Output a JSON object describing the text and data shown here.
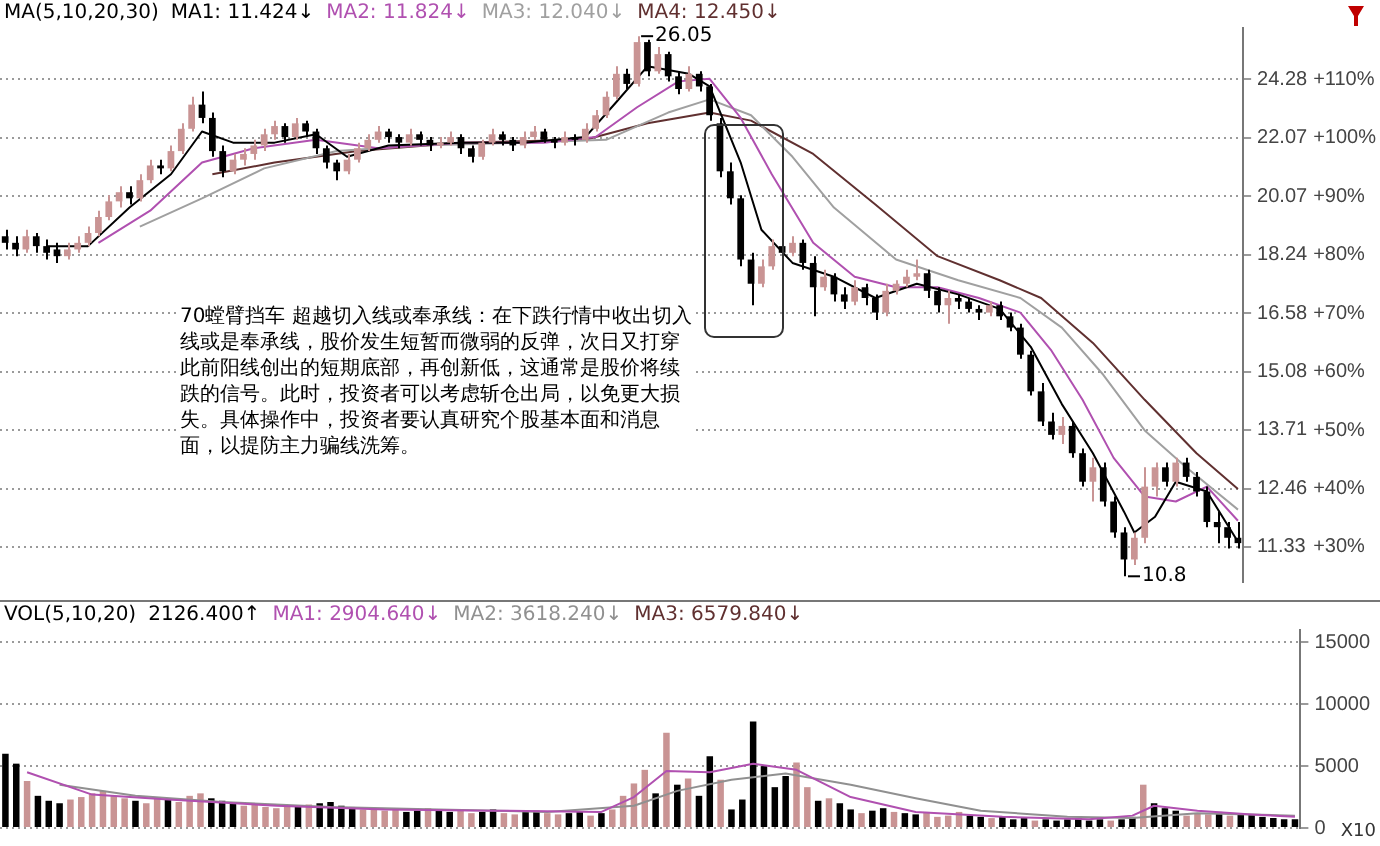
{
  "chart_data": [
    {
      "type": "candlestick",
      "title": "MA(5,10,20,30)",
      "tick_labels": "y",
      "grid": "y",
      "log": true,
      "marker": "none",
      "categories": [
        null,
        null,
        null,
        null,
        null,
        null,
        null,
        null,
        null,
        null,
        null,
        null,
        null,
        null,
        null,
        null,
        null,
        null,
        null,
        null,
        null,
        null,
        null,
        null,
        null,
        null,
        null,
        null,
        null,
        null,
        null,
        null,
        null,
        null,
        null,
        null,
        null,
        null,
        null,
        null,
        null,
        null,
        null,
        null,
        null,
        null,
        null,
        null,
        null,
        null,
        null,
        null,
        null,
        null,
        null,
        null,
        null,
        null,
        null,
        null,
        null,
        null,
        null,
        null,
        null,
        null,
        null,
        null,
        null,
        null,
        null,
        null,
        null,
        null,
        null,
        null,
        null,
        null,
        null,
        null,
        null,
        null,
        null,
        null,
        null,
        null,
        null,
        null,
        null,
        null,
        null,
        null,
        null,
        null,
        null,
        null,
        null,
        null,
        null,
        null,
        null,
        null,
        null,
        null,
        null,
        null,
        null,
        null,
        null,
        null,
        null,
        null,
        null,
        null,
        null,
        null,
        null,
        null,
        null,
        null
      ],
      "colors": [
        "#000000",
        "#000000",
        "#c99494",
        "#000000",
        "#000000",
        "#000000",
        "#c99494",
        "#c99494",
        "#c99494",
        "#c99494",
        "#c99494",
        "#c99494",
        "#000000",
        "#c99494",
        "#c99494",
        "#000000",
        "#c99494",
        "#c99494",
        "#c99494",
        "#000000",
        "#000000",
        "#000000",
        "#c99494",
        "#c99494",
        "#c99494",
        "#c99494",
        "#c99494",
        "#000000",
        "#c99494",
        "#000000",
        "#000000",
        "#000000",
        "#000000",
        "#c99494",
        "#c99494",
        "#c99494",
        "#c99494",
        "#000000",
        "#000000",
        "#c99494",
        "#000000",
        "#000000",
        "#c99494",
        "#c99494",
        "#000000",
        "#000000",
        "#c99494",
        "#c99494",
        "#000000",
        "#000000",
        "#c99494",
        "#c99494",
        "#000000",
        "#000000",
        "#c99494",
        "#000000",
        "#c99494",
        "#c99494",
        "#c99494",
        "#c99494",
        "#000000",
        "#c99494",
        "#000000",
        "#c99494",
        "#000000",
        "#000000",
        "#c99494",
        "#000000",
        "#000000",
        "#000000",
        "#000000",
        "#000000",
        "#000000",
        "#c99494",
        "#c99494",
        "#000000",
        "#c99494",
        "#000000",
        "#000000",
        "#c99494",
        "#000000",
        "#000000",
        "#c99494",
        "#000000",
        "#000000",
        "#c99494",
        "#c99494",
        "#c99494",
        "#c99494",
        "#000000",
        "#000000",
        "#c99494",
        "#000000",
        "#000000",
        "#000000",
        "#c99494",
        "#000000",
        "#000000",
        "#000000",
        "#000000",
        "#000000",
        "#000000",
        "#c99494",
        "#000000",
        "#000000",
        "#c99494",
        "#000000",
        "#000000",
        "#000000",
        "#c99494",
        "#c99494",
        "#c99494",
        "#000000",
        "#c99494",
        "#000000",
        "#000000",
        "#000000",
        "#000000",
        "#000000",
        "#000000"
      ],
      "ohlc": [
        [
          18.8,
          19.0,
          18.4,
          18.6
        ],
        [
          18.6,
          18.8,
          18.2,
          18.4
        ],
        [
          18.4,
          19.0,
          18.3,
          18.8
        ],
        [
          18.8,
          18.9,
          18.3,
          18.5
        ],
        [
          18.5,
          18.7,
          18.1,
          18.3
        ],
        [
          18.4,
          18.6,
          18.0,
          18.2
        ],
        [
          18.2,
          18.6,
          18.1,
          18.4
        ],
        [
          18.4,
          18.8,
          18.3,
          18.6
        ],
        [
          18.6,
          19.1,
          18.5,
          18.9
        ],
        [
          18.9,
          19.6,
          18.8,
          19.4
        ],
        [
          19.4,
          20.1,
          19.3,
          19.9
        ],
        [
          19.9,
          20.4,
          19.7,
          20.2
        ],
        [
          20.2,
          20.4,
          19.8,
          20.0
        ],
        [
          20.0,
          20.8,
          19.9,
          20.6
        ],
        [
          20.6,
          21.3,
          20.5,
          21.1
        ],
        [
          21.1,
          21.3,
          20.8,
          21.0
        ],
        [
          21.0,
          21.8,
          20.9,
          21.6
        ],
        [
          21.6,
          22.6,
          21.5,
          22.4
        ],
        [
          22.4,
          23.6,
          22.3,
          23.3
        ],
        [
          23.3,
          23.8,
          22.6,
          22.8
        ],
        [
          22.8,
          23.0,
          21.4,
          21.6
        ],
        [
          21.6,
          21.8,
          20.7,
          20.9
        ],
        [
          20.9,
          21.5,
          20.8,
          21.3
        ],
        [
          21.3,
          21.7,
          21.1,
          21.5
        ],
        [
          21.5,
          22.0,
          21.3,
          21.8
        ],
        [
          21.8,
          22.4,
          21.6,
          22.2
        ],
        [
          22.2,
          22.7,
          22.0,
          22.5
        ],
        [
          22.5,
          22.6,
          21.9,
          22.1
        ],
        [
          22.1,
          22.8,
          22.0,
          22.6
        ],
        [
          22.6,
          22.7,
          22.1,
          22.3
        ],
        [
          22.3,
          22.4,
          21.5,
          21.7
        ],
        [
          21.7,
          21.8,
          21.0,
          21.2
        ],
        [
          21.2,
          21.3,
          20.6,
          20.9
        ],
        [
          20.9,
          21.5,
          20.8,
          21.3
        ],
        [
          21.3,
          21.9,
          21.2,
          21.7
        ],
        [
          21.7,
          22.2,
          21.6,
          22.0
        ],
        [
          22.0,
          22.5,
          21.9,
          22.3
        ],
        [
          22.3,
          22.4,
          21.9,
          22.1
        ],
        [
          22.1,
          22.2,
          21.7,
          21.9
        ],
        [
          21.9,
          22.4,
          21.8,
          22.2
        ],
        [
          22.2,
          22.3,
          21.8,
          22.0
        ],
        [
          22.0,
          22.1,
          21.6,
          21.8
        ],
        [
          21.8,
          22.1,
          21.7,
          21.9
        ],
        [
          21.9,
          22.3,
          21.8,
          22.1
        ],
        [
          22.1,
          22.2,
          21.5,
          21.7
        ],
        [
          21.7,
          21.8,
          21.2,
          21.4
        ],
        [
          21.4,
          22.0,
          21.3,
          21.9
        ],
        [
          21.9,
          22.4,
          21.8,
          22.2
        ],
        [
          22.2,
          22.3,
          21.8,
          22.0
        ],
        [
          22.0,
          22.1,
          21.6,
          21.8
        ],
        [
          21.8,
          22.3,
          21.7,
          22.1
        ],
        [
          22.1,
          22.5,
          22.0,
          22.3
        ],
        [
          22.3,
          22.4,
          21.9,
          22.0
        ],
        [
          22.0,
          22.1,
          21.7,
          21.9
        ],
        [
          21.9,
          22.3,
          21.8,
          22.1
        ],
        [
          22.1,
          22.2,
          21.8,
          22.0
        ],
        [
          22.0,
          22.6,
          21.9,
          22.4
        ],
        [
          22.4,
          23.1,
          22.3,
          22.9
        ],
        [
          22.9,
          23.8,
          22.8,
          23.6
        ],
        [
          23.6,
          24.8,
          23.5,
          24.5
        ],
        [
          24.5,
          24.7,
          23.9,
          24.1
        ],
        [
          24.1,
          26.05,
          24.0,
          25.8
        ],
        [
          25.8,
          25.9,
          24.4,
          24.6
        ],
        [
          24.6,
          25.6,
          24.5,
          25.3
        ],
        [
          25.3,
          25.4,
          24.2,
          24.4
        ],
        [
          24.4,
          24.6,
          23.7,
          23.9
        ],
        [
          23.9,
          24.8,
          23.8,
          24.5
        ],
        [
          24.5,
          24.6,
          23.8,
          24.0
        ],
        [
          24.0,
          24.1,
          22.7,
          22.9
        ],
        [
          22.6,
          22.8,
          20.7,
          20.9
        ],
        [
          20.9,
          21.2,
          19.8,
          20.0
        ],
        [
          20.0,
          20.1,
          17.9,
          18.1
        ],
        [
          18.1,
          18.3,
          16.8,
          17.4
        ],
        [
          17.4,
          18.1,
          17.3,
          17.9
        ],
        [
          17.9,
          18.7,
          17.8,
          18.5
        ],
        [
          18.5,
          18.6,
          18.1,
          18.3
        ],
        [
          18.3,
          18.8,
          18.2,
          18.6
        ],
        [
          18.6,
          18.7,
          17.8,
          18.0
        ],
        [
          18.0,
          18.2,
          16.5,
          17.3
        ],
        [
          17.3,
          17.8,
          17.2,
          17.6
        ],
        [
          17.6,
          17.7,
          16.9,
          17.1
        ],
        [
          17.1,
          17.3,
          16.7,
          16.9
        ],
        [
          16.9,
          17.5,
          16.8,
          17.3
        ],
        [
          17.3,
          17.4,
          16.8,
          17.0
        ],
        [
          17.0,
          17.1,
          16.4,
          16.6
        ],
        [
          16.6,
          17.4,
          16.5,
          17.2
        ],
        [
          17.2,
          17.5,
          17.1,
          17.4
        ],
        [
          17.4,
          17.8,
          17.3,
          17.6
        ],
        [
          17.6,
          18.1,
          17.5,
          17.7
        ],
        [
          17.7,
          17.8,
          17.0,
          17.2
        ],
        [
          17.2,
          17.3,
          16.6,
          16.8
        ],
        [
          16.8,
          17.2,
          16.3,
          17.0
        ],
        [
          17.0,
          17.1,
          16.7,
          16.9
        ],
        [
          16.9,
          17.0,
          16.6,
          16.7
        ],
        [
          16.7,
          16.8,
          16.4,
          16.6
        ],
        [
          16.6,
          16.9,
          16.5,
          16.8
        ],
        [
          16.8,
          16.9,
          16.4,
          16.5
        ],
        [
          16.5,
          16.6,
          16.1,
          16.2
        ],
        [
          16.2,
          16.3,
          15.4,
          15.5
        ],
        [
          15.5,
          15.6,
          14.5,
          14.6
        ],
        [
          14.6,
          14.8,
          13.8,
          13.9
        ],
        [
          13.9,
          14.1,
          13.5,
          13.6
        ],
        [
          13.6,
          14.0,
          13.4,
          13.8
        ],
        [
          13.8,
          13.9,
          13.1,
          13.2
        ],
        [
          13.2,
          13.3,
          12.5,
          12.6
        ],
        [
          12.6,
          13.1,
          12.2,
          12.9
        ],
        [
          12.9,
          13.0,
          12.1,
          12.2
        ],
        [
          12.2,
          12.3,
          11.5,
          11.6
        ],
        [
          11.6,
          11.7,
          10.8,
          11.1
        ],
        [
          11.1,
          11.6,
          11.0,
          11.5
        ],
        [
          11.5,
          12.9,
          11.4,
          12.5
        ],
        [
          12.5,
          13.0,
          12.3,
          12.9
        ],
        [
          12.9,
          13.0,
          12.5,
          12.6
        ],
        [
          12.6,
          13.1,
          12.5,
          13.0
        ],
        [
          13.0,
          13.1,
          12.6,
          12.7
        ],
        [
          12.7,
          12.8,
          12.3,
          12.4
        ],
        [
          12.4,
          12.5,
          11.7,
          11.8
        ],
        [
          11.8,
          12.0,
          11.4,
          11.7
        ],
        [
          11.7,
          11.8,
          11.3,
          11.5
        ],
        [
          11.5,
          11.8,
          11.3,
          11.4
        ]
      ],
      "series": [
        {
          "type": "line",
          "name": "MA1: 11.424↓",
          "color": "#000000",
          "values": [
            null,
            null,
            null,
            null,
            18.5,
            null,
            null,
            null,
            18.5,
            null,
            null,
            null,
            19.7,
            null,
            null,
            null,
            20.8,
            null,
            null,
            22.3,
            null,
            null,
            21.9,
            null,
            null,
            null,
            21.9,
            null,
            null,
            null,
            22.2,
            null,
            null,
            21.4,
            null,
            null,
            null,
            21.8,
            null,
            null,
            null,
            null,
            null,
            null,
            21.9,
            null,
            null,
            null,
            null,
            null,
            21.9,
            null,
            null,
            null,
            null,
            null,
            22.1,
            null,
            null,
            23.4,
            null,
            null,
            24.8,
            null,
            null,
            null,
            24.5,
            null,
            24.0,
            null,
            null,
            21.2,
            null,
            19.0,
            null,
            null,
            18.0,
            null,
            null,
            null,
            17.6,
            null,
            null,
            null,
            17.0,
            null,
            null,
            null,
            17.4,
            null,
            null,
            null,
            17.1,
            null,
            null,
            null,
            16.7,
            null,
            null,
            15.7,
            null,
            null,
            14.3,
            null,
            null,
            13.2,
            null,
            null,
            12.0,
            11.6,
            null,
            11.9,
            null,
            12.6,
            null,
            null,
            12.4,
            null,
            null,
            11.424
          ]
        },
        {
          "type": "line",
          "name": "MA2: 11.824↓",
          "color": "#b050b0",
          "values": [
            null,
            null,
            null,
            null,
            null,
            null,
            null,
            null,
            null,
            18.6,
            null,
            null,
            null,
            null,
            19.6,
            null,
            null,
            null,
            null,
            21.2,
            null,
            null,
            null,
            null,
            21.7,
            null,
            null,
            null,
            null,
            null,
            22.0,
            null,
            null,
            null,
            null,
            null,
            21.7,
            null,
            null,
            null,
            null,
            null,
            null,
            null,
            21.9,
            null,
            null,
            null,
            null,
            null,
            null,
            null,
            21.9,
            null,
            null,
            null,
            null,
            22.1,
            null,
            null,
            null,
            23.2,
            null,
            null,
            null,
            24.2,
            null,
            null,
            24.3,
            null,
            null,
            22.8,
            null,
            null,
            20.8,
            null,
            null,
            null,
            18.6,
            null,
            null,
            null,
            17.6,
            null,
            null,
            null,
            17.3,
            null,
            null,
            null,
            17.3,
            null,
            null,
            null,
            17.0,
            null,
            null,
            null,
            16.6,
            null,
            null,
            15.6,
            null,
            null,
            14.4,
            null,
            null,
            13.1,
            null,
            null,
            12.3,
            null,
            null,
            12.2,
            null,
            null,
            12.5,
            null,
            null,
            11.824
          ]
        },
        {
          "type": "line",
          "name": "MA3: 12.040↓",
          "color": "#a0a0a0",
          "values": [
            null,
            null,
            null,
            null,
            null,
            null,
            null,
            null,
            null,
            null,
            null,
            null,
            null,
            19.1,
            null,
            null,
            null,
            null,
            null,
            20.0,
            null,
            null,
            null,
            null,
            null,
            21.0,
            null,
            null,
            null,
            null,
            null,
            null,
            21.6,
            null,
            null,
            null,
            null,
            null,
            null,
            null,
            21.8,
            null,
            null,
            null,
            null,
            null,
            null,
            null,
            null,
            null,
            21.9,
            null,
            null,
            null,
            null,
            null,
            null,
            null,
            22.0,
            null,
            null,
            null,
            null,
            null,
            23.0,
            null,
            null,
            null,
            23.5,
            null,
            null,
            null,
            22.9,
            null,
            null,
            null,
            21.4,
            null,
            null,
            null,
            19.7,
            null,
            null,
            null,
            null,
            null,
            18.1,
            null,
            null,
            null,
            null,
            null,
            17.5,
            null,
            null,
            null,
            null,
            null,
            17.0,
            null,
            null,
            null,
            16.2,
            null,
            null,
            null,
            15.0,
            null,
            null,
            null,
            13.7,
            null,
            null,
            null,
            12.9,
            null,
            null,
            null,
            null,
            12.04
          ]
        },
        {
          "type": "line",
          "name": "MA4: 12.450↓",
          "color": "#603030",
          "values": [
            null,
            null,
            null,
            null,
            null,
            null,
            null,
            null,
            null,
            null,
            null,
            null,
            null,
            null,
            null,
            null,
            null,
            null,
            null,
            null,
            20.8,
            null,
            null,
            null,
            null,
            null,
            21.2,
            null,
            null,
            null,
            null,
            null,
            null,
            null,
            21.6,
            null,
            null,
            null,
            null,
            null,
            null,
            null,
            null,
            null,
            21.9,
            null,
            null,
            null,
            null,
            null,
            null,
            null,
            null,
            null,
            null,
            null,
            22.0,
            null,
            null,
            null,
            null,
            null,
            22.6,
            null,
            null,
            null,
            null,
            null,
            23.0,
            null,
            null,
            null,
            22.7,
            null,
            null,
            null,
            null,
            null,
            21.5,
            null,
            null,
            null,
            null,
            null,
            19.8,
            null,
            null,
            null,
            null,
            null,
            18.2,
            null,
            null,
            null,
            null,
            null,
            17.5,
            null,
            null,
            null,
            17.0,
            null,
            null,
            null,
            null,
            15.8,
            null,
            null,
            null,
            null,
            14.4,
            null,
            null,
            null,
            null,
            13.2,
            null,
            null,
            null,
            12.45
          ]
        }
      ],
      "ylim": [
        10.7,
        26.4
      ],
      "yticks": [
        24.28,
        22.07,
        20.07,
        18.24,
        16.58,
        15.08,
        13.71,
        12.46,
        11.33
      ],
      "y2lim": [
        24,
        118.8
      ],
      "y2ticks": [
        {
          "value": 110,
          "label": "+110%"
        },
        {
          "value": 100,
          "label": "+100%"
        },
        {
          "value": 90,
          "label": "+90%"
        },
        {
          "value": 80,
          "label": "+80%"
        },
        {
          "value": 70,
          "label": "+70%"
        },
        {
          "value": 60,
          "label": "+60%"
        },
        {
          "value": 50,
          "label": "+50%"
        },
        {
          "value": 40,
          "label": "+40%"
        },
        {
          "value": 30,
          "label": "+30%"
        }
      ],
      "annotations": [
        "26.05",
        "10.8",
        "70螳臂挡车  超越切入线或奉承线：在下跌行情中收出切入线或是奉承线，股价发生短暂而微弱的反弹，次日又打穿此前阳线创出的短期底部，再创新低，这通常是股价将续跌的信号。此时，投资者可以考虑斩仓出局，以免更大损失。具体操作中，投资者要认真研究个股基本面和消息面，以提防主力骗线洗筹。"
      ]
    },
    {
      "type": "bar",
      "title": "VOL(5,10,20)",
      "tick_labels": "y",
      "grid": "y",
      "marker": "none",
      "ylabel": "X10",
      "categories": [
        null,
        null,
        null,
        null,
        null,
        null,
        null,
        null,
        null,
        null,
        null,
        null,
        null,
        null,
        null,
        null,
        null,
        null,
        null,
        null,
        null,
        null,
        null,
        null,
        null,
        null,
        null,
        null,
        null,
        null,
        null,
        null,
        null,
        null,
        null,
        null,
        null,
        null,
        null,
        null,
        null,
        null,
        null,
        null,
        null,
        null,
        null,
        null,
        null,
        null,
        null,
        null,
        null,
        null,
        null,
        null,
        null,
        null,
        null,
        null,
        null,
        null,
        null,
        null,
        null,
        null,
        null,
        null,
        null,
        null,
        null,
        null,
        null,
        null,
        null,
        null,
        null,
        null,
        null,
        null,
        null,
        null,
        null,
        null,
        null,
        null,
        null,
        null,
        null,
        null,
        null,
        null,
        null,
        null,
        null,
        null,
        null,
        null,
        null,
        null,
        null,
        null,
        null,
        null,
        null,
        null,
        null,
        null,
        null,
        null,
        null,
        null,
        null,
        null,
        null,
        null,
        null,
        null,
        null,
        null
      ],
      "series": [
        {
          "type": "bar",
          "name": "2126.400↑",
          "values": [
            6000,
            5200,
            3800,
            2600,
            2200,
            2000,
            2300,
            2500,
            2800,
            3000,
            2600,
            2400,
            2200,
            2000,
            2500,
            2300,
            2100,
            2600,
            2800,
            2400,
            2200,
            2000,
            1800,
            1900,
            1700,
            1600,
            1800,
            1700,
            1900,
            2000,
            2100,
            1800,
            1700,
            1500,
            1600,
            1400,
            1500,
            1300,
            1400,
            1600,
            1500,
            1300,
            1400,
            1200,
            1300,
            1500,
            1200,
            1100,
            1300,
            1400,
            1200,
            1100,
            1200,
            1300,
            1000,
            1200,
            1500,
            2600,
            3600,
            4700,
            2800,
            7700,
            3500,
            4000,
            2600,
            5800,
            3900,
            1500,
            2300,
            8600,
            5000,
            3300,
            4200,
            5300,
            3300,
            2200,
            2400,
            2000,
            1500,
            1200,
            1400,
            1600,
            1300,
            1200,
            1100,
            1300,
            900,
            1000,
            1300,
            1000,
            900,
            800,
            900,
            700,
            800,
            600,
            700,
            600,
            700,
            800,
            600,
            700,
            600,
            700,
            900,
            3500,
            2000,
            1600,
            1400,
            1000,
            1200,
            1100,
            1300,
            1000,
            1200,
            1100,
            900,
            800,
            700,
            700
          ],
          "colors": [
            "#000000",
            "#000000",
            "#c99494",
            "#000000",
            "#000000",
            "#000000",
            "#c99494",
            "#c99494",
            "#c99494",
            "#c99494",
            "#c99494",
            "#c99494",
            "#000000",
            "#c99494",
            "#c99494",
            "#000000",
            "#c99494",
            "#c99494",
            "#c99494",
            "#000000",
            "#000000",
            "#000000",
            "#c99494",
            "#c99494",
            "#c99494",
            "#c99494",
            "#c99494",
            "#000000",
            "#c99494",
            "#000000",
            "#000000",
            "#000000",
            "#000000",
            "#c99494",
            "#c99494",
            "#c99494",
            "#c99494",
            "#000000",
            "#000000",
            "#c99494",
            "#000000",
            "#000000",
            "#c99494",
            "#c99494",
            "#000000",
            "#000000",
            "#c99494",
            "#c99494",
            "#000000",
            "#000000",
            "#c99494",
            "#c99494",
            "#000000",
            "#000000",
            "#c99494",
            "#000000",
            "#c99494",
            "#c99494",
            "#c99494",
            "#c99494",
            "#000000",
            "#c99494",
            "#000000",
            "#c99494",
            "#000000",
            "#000000",
            "#c99494",
            "#000000",
            "#000000",
            "#000000",
            "#000000",
            "#000000",
            "#000000",
            "#c99494",
            "#c99494",
            "#000000",
            "#c99494",
            "#000000",
            "#000000",
            "#c99494",
            "#000000",
            "#000000",
            "#c99494",
            "#000000",
            "#000000",
            "#c99494",
            "#c99494",
            "#c99494",
            "#c99494",
            "#000000",
            "#000000",
            "#c99494",
            "#000000",
            "#000000",
            "#000000",
            "#c99494",
            "#000000",
            "#000000",
            "#000000",
            "#000000",
            "#000000",
            "#000000",
            "#c99494",
            "#000000",
            "#000000",
            "#c99494",
            "#000000",
            "#000000",
            "#000000",
            "#c99494",
            "#c99494",
            "#c99494",
            "#000000",
            "#c99494",
            "#000000",
            "#000000",
            "#000000",
            "#000000",
            "#000000",
            "#000000"
          ]
        },
        {
          "type": "line",
          "name": "MA1: 2904.640↓",
          "color": "#b050b0",
          "values": [
            null,
            null,
            4500,
            null,
            null,
            null,
            null,
            null,
            2700,
            null,
            null,
            null,
            null,
            null,
            null,
            2300,
            null,
            null,
            null,
            null,
            null,
            null,
            null,
            null,
            null,
            1800,
            null,
            null,
            null,
            null,
            null,
            null,
            null,
            null,
            null,
            1500,
            null,
            null,
            null,
            null,
            null,
            null,
            null,
            null,
            null,
            1400,
            null,
            null,
            null,
            null,
            null,
            null,
            null,
            null,
            null,
            1300,
            null,
            null,
            2500,
            null,
            null,
            4600,
            null,
            null,
            null,
            4500,
            null,
            null,
            null,
            5200,
            null,
            null,
            null,
            4700,
            null,
            null,
            null,
            null,
            2500,
            null,
            null,
            null,
            null,
            null,
            1300,
            null,
            null,
            null,
            null,
            null,
            null,
            null,
            900,
            null,
            null,
            null,
            null,
            null,
            null,
            null,
            700,
            null,
            null,
            null,
            1000,
            null,
            1800,
            null,
            null,
            null,
            1400,
            null,
            null,
            null,
            null,
            1100,
            null,
            null,
            null,
            900
          ]
        },
        {
          "type": "line",
          "name": "MA2: 3618.240↓",
          "color": "#909090",
          "values": [
            null,
            null,
            null,
            null,
            null,
            3500,
            null,
            null,
            null,
            null,
            null,
            null,
            2600,
            null,
            null,
            null,
            null,
            null,
            null,
            null,
            2100,
            null,
            null,
            null,
            null,
            null,
            null,
            null,
            null,
            null,
            1700,
            null,
            null,
            null,
            null,
            null,
            null,
            null,
            null,
            null,
            1500,
            null,
            null,
            null,
            null,
            null,
            null,
            null,
            null,
            null,
            1300,
            null,
            null,
            null,
            null,
            null,
            null,
            null,
            1800,
            null,
            null,
            null,
            3000,
            null,
            null,
            null,
            null,
            3900,
            null,
            null,
            null,
            null,
            4400,
            null,
            null,
            null,
            null,
            null,
            3500,
            null,
            null,
            null,
            null,
            null,
            2400,
            null,
            null,
            null,
            null,
            null,
            1400,
            null,
            null,
            null,
            null,
            null,
            null,
            null,
            900,
            null,
            null,
            null,
            null,
            null,
            800,
            null,
            null,
            null,
            null,
            null,
            1200,
            null,
            null,
            null,
            null,
            null,
            null,
            null,
            null,
            1000
          ]
        }
      ],
      "ylim": [
        0,
        16000
      ],
      "yticks": [
        0,
        5000,
        10000,
        15000
      ],
      "annotations": [
        "MA3: 6579.840↓"
      ]
    }
  ]
}
